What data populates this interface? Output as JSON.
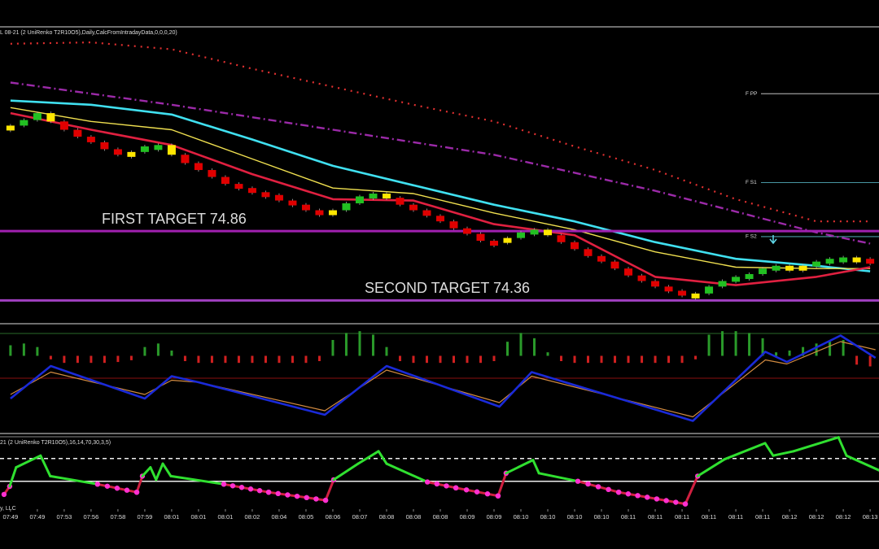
{
  "header": "L 08-21 (2 UniRenko T2R10O5),Daily,CalcFromIntradayData,0,0,0,20)",
  "footer": "y, LLC",
  "chart_data": [
    {
      "type": "renko",
      "xlim": [
        -0.39,
        32.33
      ],
      "ylim": [
        74.21,
        76.32
      ],
      "up_color": "#22c022",
      "down_color": "#e00000",
      "reversal_color": "#ffe600",
      "x": [
        0,
        0.5,
        1,
        1.5,
        2,
        2.5,
        3,
        3.5,
        4,
        4.5,
        5,
        5.5,
        6,
        6.5,
        7,
        7.5,
        8,
        8.5,
        9,
        9.5,
        10,
        10.5,
        11,
        11.5,
        12,
        12.5,
        13,
        13.5,
        14,
        14.5,
        15,
        15.5,
        16,
        16.5,
        17,
        17.5,
        18,
        18.5,
        19,
        19.5,
        20,
        20.5,
        21,
        21.5,
        22,
        22.5,
        23,
        23.5,
        24,
        24.5,
        25,
        25.5,
        26,
        26.5,
        27,
        27.5,
        28,
        28.5,
        29,
        29.5,
        30,
        30.5,
        31,
        31.5,
        32
      ],
      "values": [
        75.62,
        75.66,
        75.71,
        75.65,
        75.59,
        75.54,
        75.5,
        75.45,
        75.41,
        75.43,
        75.47,
        75.48,
        75.41,
        75.35,
        75.3,
        75.25,
        75.2,
        75.17,
        75.14,
        75.12,
        75.08,
        75.05,
        75.01,
        74.99,
        75.01,
        75.06,
        75.11,
        75.13,
        75.1,
        75.05,
        75.01,
        74.97,
        74.93,
        74.88,
        74.84,
        74.79,
        74.78,
        74.81,
        74.85,
        74.87,
        74.83,
        74.78,
        74.73,
        74.68,
        74.64,
        74.59,
        74.54,
        74.5,
        74.46,
        74.43,
        74.4,
        74.41,
        74.46,
        74.5,
        74.53,
        74.55,
        74.59,
        74.61,
        74.59,
        74.61,
        74.64,
        74.66,
        74.67,
        74.66,
        74.65
      ],
      "series": [
        {
          "color": "#e03030",
          "style": "dotted",
          "x": [
            0,
            3,
            6,
            9,
            12,
            15,
            18,
            21,
            24,
            27,
            30,
            32
          ],
          "values": [
            76.21,
            76.22,
            76.17,
            76.03,
            75.9,
            75.77,
            75.65,
            75.47,
            75.3,
            75.09,
            74.93,
            74.93
          ]
        },
        {
          "color": "#9b2aa8",
          "style": "dashdot",
          "x": [
            0,
            6,
            12,
            18,
            24,
            30,
            32
          ],
          "values": [
            75.93,
            75.77,
            75.59,
            75.41,
            75.15,
            74.85,
            74.77
          ]
        },
        {
          "color": "#40e0f0",
          "style": "solid",
          "x": [
            0,
            3,
            6,
            9,
            12,
            15,
            18,
            21,
            24,
            27,
            30,
            32
          ],
          "values": [
            75.8,
            75.77,
            75.7,
            75.52,
            75.33,
            75.19,
            75.05,
            74.93,
            74.78,
            74.66,
            74.61,
            74.57
          ]
        },
        {
          "color": "#f0e050",
          "style": "thin",
          "x": [
            0,
            3,
            6,
            9,
            12,
            15,
            18,
            21,
            24,
            27,
            30,
            32
          ],
          "values": [
            75.75,
            75.65,
            75.59,
            75.38,
            75.17,
            75.13,
            74.99,
            74.87,
            74.71,
            74.6,
            74.59,
            74.59
          ]
        },
        {
          "color": "#e02040",
          "style": "solid",
          "x": [
            0,
            3,
            6,
            9,
            12,
            15,
            18,
            21,
            24,
            27,
            30,
            32
          ],
          "values": [
            75.71,
            75.59,
            75.48,
            75.27,
            75.09,
            75.08,
            74.91,
            74.83,
            74.53,
            74.47,
            74.53,
            74.6
          ]
        }
      ],
      "levels": [
        {
          "label": "F PP",
          "value": 75.85,
          "color": "#dddddd"
        },
        {
          "label": "F S1",
          "value": 75.21,
          "color": "#60c8d8"
        },
        {
          "label": "F S2",
          "value": 74.82,
          "color": "#60c8d8"
        }
      ],
      "annotations": [
        {
          "text": "FIRST TARGET 74.86",
          "value": 74.86,
          "color": "#a020b0"
        },
        {
          "text": "SECOND TARGET 74.36",
          "value": 74.36,
          "color": "#a040c0"
        }
      ]
    },
    {
      "type": "bar",
      "xlim": [
        -0.39,
        32.33
      ],
      "ylim": [
        -30,
        30
      ],
      "up_color": "#2a9a2a",
      "down_color": "#d02020",
      "x": [
        0,
        0.5,
        1,
        1.5,
        2,
        2.5,
        3,
        3.5,
        4,
        4.5,
        5,
        5.5,
        6,
        6.5,
        7,
        7.5,
        8,
        8.5,
        9,
        9.5,
        10,
        10.5,
        11,
        11.5,
        12,
        12.5,
        13,
        13.5,
        14,
        14.5,
        15,
        15.5,
        16,
        16.5,
        17,
        17.5,
        18,
        18.5,
        19,
        19.5,
        20,
        20.5,
        21,
        21.5,
        22,
        22.5,
        23,
        23.5,
        24,
        24.5,
        25,
        25.5,
        26,
        26.5,
        27,
        27.5,
        28,
        28.5,
        29,
        29.5,
        30,
        30.5,
        31,
        31.5,
        32
      ],
      "values": [
        12,
        14,
        10,
        -4,
        -8,
        -8,
        -8,
        -8,
        -7,
        -5,
        10,
        14,
        6,
        -6,
        -8,
        -8,
        -8,
        -8,
        -8,
        -8,
        -8,
        -8,
        -8,
        -6,
        18,
        26,
        28,
        24,
        10,
        -6,
        -8,
        -8,
        -8,
        -8,
        -8,
        -8,
        -6,
        16,
        26,
        20,
        4,
        -6,
        -8,
        -8,
        -8,
        -8,
        -8,
        -8,
        -8,
        -8,
        -8,
        -4,
        24,
        28,
        28,
        26,
        20,
        4,
        6,
        10,
        14,
        16,
        18,
        -10,
        -12
      ]
    },
    {
      "type": "line",
      "xlim": [
        -0.39,
        32.33
      ],
      "ylim": [
        0,
        100
      ],
      "levels": [
        52
      ],
      "level_color": "#8a1010",
      "x": [
        0,
        1.5,
        5,
        6,
        7,
        11.7,
        14,
        18.2,
        19.4,
        25.4,
        28.1,
        28.9,
        30.9,
        32.2
      ],
      "series": [
        {
          "color": "#d08a40",
          "values": [
            36,
            58,
            36,
            50,
            48,
            20,
            60,
            28,
            54,
            14,
            70,
            66,
            88,
            80
          ]
        },
        {
          "color": "#1a2ad8",
          "values": [
            32,
            64,
            32,
            54,
            48,
            16,
            64,
            24,
            58,
            10,
            78,
            68,
            94,
            72
          ]
        }
      ]
    },
    {
      "type": "signal",
      "xlim": [
        -0.39,
        32.33
      ],
      "ylim": [
        0,
        100
      ],
      "levels": [
        68,
        37
      ],
      "up_color": "#30e030",
      "down_color": "#d02040",
      "dot_color": "#ff30d0",
      "x": [
        -0.24,
        -0.03,
        0.21,
        1.12,
        1.48,
        3.24,
        4.7,
        4.91,
        5.21,
        5.42,
        5.67,
        5.97,
        7.94,
        9.61,
        11.73,
        12.03,
        12.94,
        13.7,
        14,
        15.52,
        16.58,
        18.15,
        18.45,
        19.45,
        19.67,
        21.12,
        22.64,
        25.12,
        25.58,
        26.58,
        28.09,
        28.39,
        29.15,
        30.82,
        31.12,
        32.33
      ],
      "values": [
        19,
        30,
        56,
        72,
        44,
        33,
        22,
        44,
        56,
        39,
        61,
        44,
        33,
        22,
        11,
        39,
        61,
        78,
        61,
        36,
        28,
        17,
        48,
        66,
        48,
        37,
        22,
        6,
        44,
        67,
        89,
        72,
        78,
        97,
        72,
        52
      ],
      "xticks": [
        {
          "value": 0,
          "label": "07:49"
        },
        {
          "value": 1,
          "label": "07:49"
        },
        {
          "value": 2,
          "label": "07:53"
        },
        {
          "value": 3,
          "label": "07:56"
        },
        {
          "value": 4,
          "label": "07:58"
        },
        {
          "value": 5,
          "label": "07:59"
        },
        {
          "value": 6,
          "label": "08:01"
        },
        {
          "value": 7,
          "label": "08:01"
        },
        {
          "value": 8,
          "label": "08:01"
        },
        {
          "value": 9,
          "label": "08:02"
        },
        {
          "value": 10,
          "label": "08:04"
        },
        {
          "value": 11,
          "label": "08:05"
        },
        {
          "value": 12,
          "label": "08:06"
        },
        {
          "value": 13,
          "label": "08:07"
        },
        {
          "value": 14,
          "label": "08:08"
        },
        {
          "value": 15,
          "label": "08:08"
        },
        {
          "value": 16,
          "label": "08:08"
        },
        {
          "value": 17,
          "label": "08:09"
        },
        {
          "value": 18,
          "label": "08:09"
        },
        {
          "value": 19,
          "label": "08:10"
        },
        {
          "value": 20,
          "label": "08:10"
        },
        {
          "value": 21,
          "label": "08:10"
        },
        {
          "value": 22,
          "label": "08:10"
        },
        {
          "value": 23,
          "label": "08:11"
        },
        {
          "value": 24,
          "label": "08:11"
        },
        {
          "value": 25,
          "label": "08:11"
        },
        {
          "value": 26,
          "label": "08:11"
        },
        {
          "value": 27,
          "label": "08:11"
        },
        {
          "value": 28,
          "label": "08:11"
        },
        {
          "value": 29,
          "label": "08:12"
        },
        {
          "value": 30,
          "label": "08:12"
        },
        {
          "value": 31,
          "label": "08:12"
        },
        {
          "value": 32,
          "label": "08:13"
        }
      ],
      "subtitle": "21 (2 UniRenko T2R10O5),16,14,70,30,3,5)"
    }
  ]
}
